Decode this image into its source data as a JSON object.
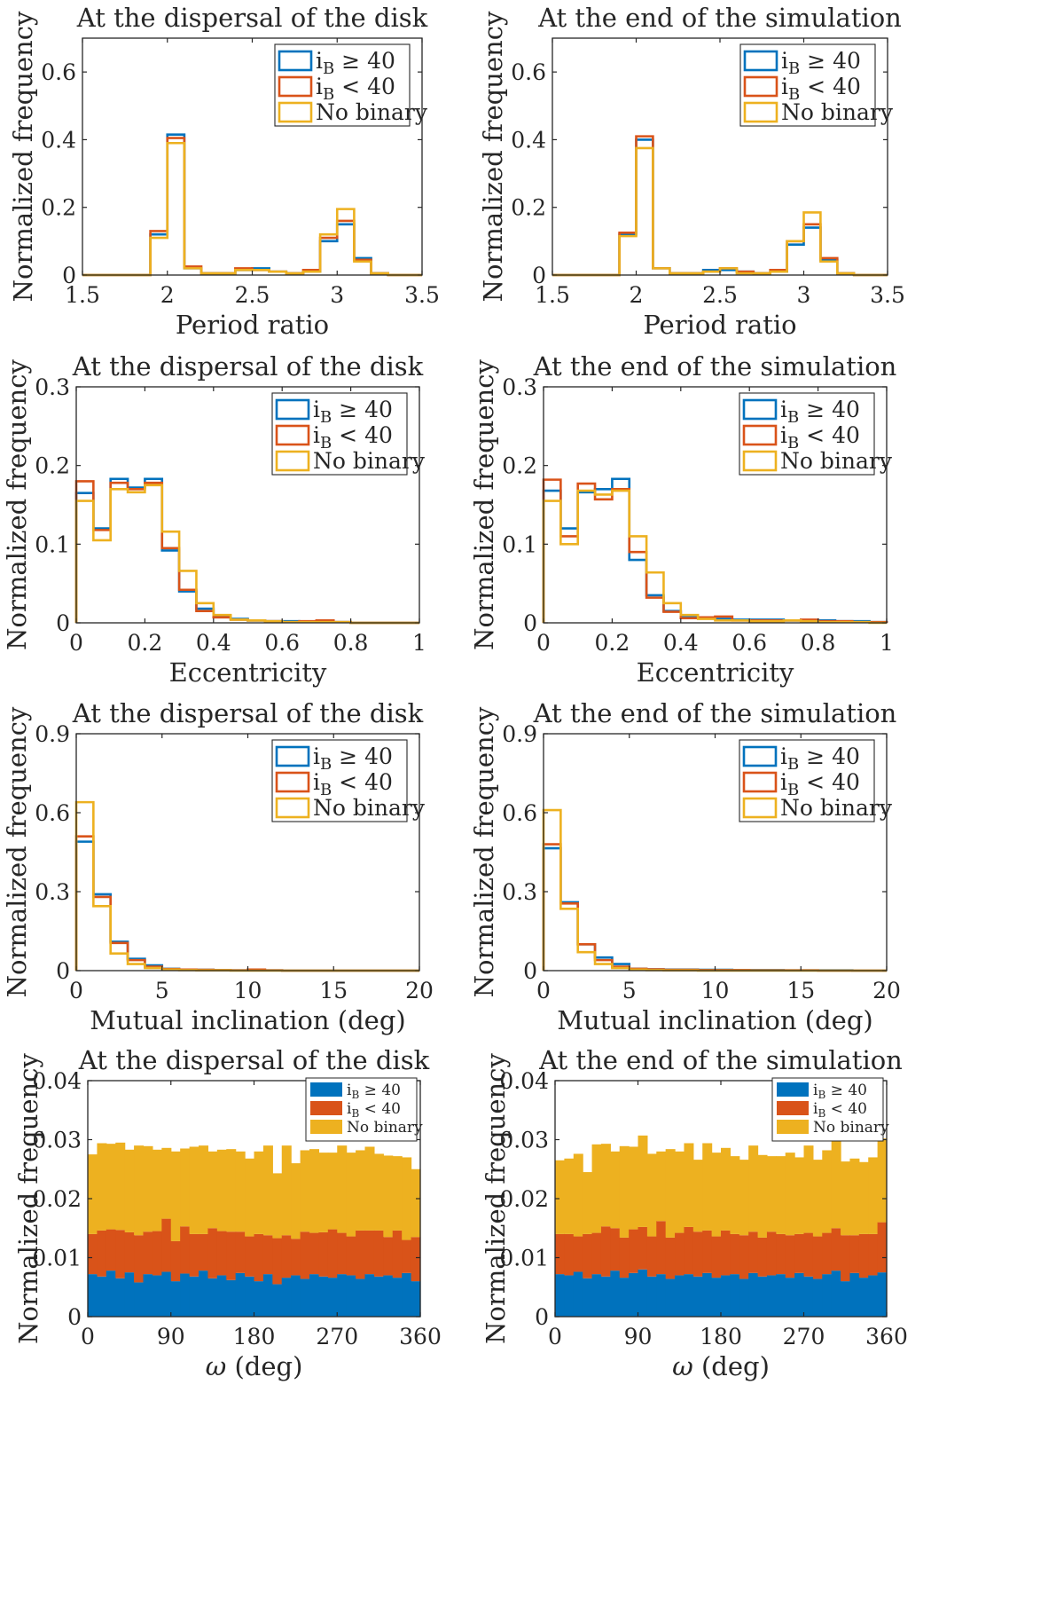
{
  "figure": {
    "colors": {
      "series1": "#0072BD",
      "series2": "#D95319",
      "series3": "#EDB120",
      "axis": "#262626"
    }
  },
  "chart_data": [
    {
      "type": "histogram",
      "title": "At the dispersal of the disk",
      "xlabel": "Period ratio",
      "ylabel": "Normalized frequency",
      "xlim": [
        1.5,
        3.5
      ],
      "ylim": [
        0,
        0.7
      ],
      "xticks": [
        "1.5",
        "2",
        "2.5",
        "3",
        "3.5"
      ],
      "yticks": [
        "0",
        "0.2",
        "0.4",
        "0.6"
      ],
      "bin_edges": [
        1.5,
        1.6,
        1.7,
        1.8,
        1.9,
        2.0,
        2.1,
        2.2,
        2.3,
        2.4,
        2.5,
        2.6,
        2.7,
        2.8,
        2.9,
        3.0,
        3.1,
        3.2,
        3.3,
        3.4,
        3.5
      ],
      "series": [
        {
          "name": "iB ≥ 40",
          "values": [
            0,
            0,
            0,
            0,
            0.12,
            0.415,
            0.02,
            0.005,
            0.005,
            0.015,
            0.02,
            0.01,
            0.005,
            0.01,
            0.1,
            0.15,
            0.05,
            0.005,
            0,
            0
          ]
        },
        {
          "name": "iB < 40",
          "values": [
            0,
            0,
            0,
            0,
            0.13,
            0.405,
            0.025,
            0.005,
            0.005,
            0.02,
            0.015,
            0.01,
            0.005,
            0.015,
            0.11,
            0.16,
            0.045,
            0.005,
            0,
            0
          ]
        },
        {
          "name": "No binary",
          "values": [
            0,
            0,
            0,
            0,
            0.11,
            0.39,
            0.02,
            0.005,
            0.005,
            0.015,
            0.015,
            0.01,
            0.005,
            0.01,
            0.12,
            0.195,
            0.04,
            0.005,
            0,
            0
          ]
        }
      ],
      "legend": {
        "entries": [
          "iB ≥ 40",
          "iB < 40",
          "No binary"
        ],
        "location": "top-right"
      }
    },
    {
      "type": "histogram",
      "title": "At the end of the simulation",
      "xlabel": "Period ratio",
      "ylabel": "Normalized frequency",
      "xlim": [
        1.5,
        3.5
      ],
      "ylim": [
        0,
        0.7
      ],
      "xticks": [
        "1.5",
        "2",
        "2.5",
        "3",
        "3.5"
      ],
      "yticks": [
        "0",
        "0.2",
        "0.4",
        "0.6"
      ],
      "bin_edges": [
        1.5,
        1.6,
        1.7,
        1.8,
        1.9,
        2.0,
        2.1,
        2.2,
        2.3,
        2.4,
        2.5,
        2.6,
        2.7,
        2.8,
        2.9,
        3.0,
        3.1,
        3.2,
        3.3,
        3.4,
        3.5
      ],
      "series": [
        {
          "name": "iB ≥ 40",
          "values": [
            0,
            0,
            0,
            0,
            0.12,
            0.4,
            0.02,
            0.005,
            0.005,
            0.015,
            0.015,
            0.01,
            0.005,
            0.01,
            0.09,
            0.14,
            0.045,
            0.005,
            0,
            0
          ]
        },
        {
          "name": "iB < 40",
          "values": [
            0,
            0,
            0,
            0,
            0.125,
            0.41,
            0.02,
            0.005,
            0.005,
            0.01,
            0.02,
            0.01,
            0.005,
            0.015,
            0.1,
            0.15,
            0.05,
            0.005,
            0,
            0
          ]
        },
        {
          "name": "No binary",
          "values": [
            0,
            0,
            0,
            0,
            0.115,
            0.375,
            0.02,
            0.005,
            0.005,
            0.01,
            0.02,
            0.005,
            0.005,
            0.01,
            0.1,
            0.185,
            0.04,
            0.005,
            0,
            0
          ]
        }
      ],
      "legend": {
        "entries": [
          "iB ≥ 40",
          "iB < 40",
          "No binary"
        ],
        "location": "top-right"
      }
    },
    {
      "type": "histogram",
      "title": "At the dispersal of the disk",
      "xlabel": "Eccentricity",
      "ylabel": "Normalized frequency",
      "xlim": [
        0,
        1
      ],
      "ylim": [
        0,
        0.3
      ],
      "xticks": [
        "0",
        "0.2",
        "0.4",
        "0.6",
        "0.8",
        "1"
      ],
      "yticks": [
        "0",
        "0.1",
        "0.2",
        "0.3"
      ],
      "bin_edges": [
        0,
        0.05,
        0.1,
        0.15,
        0.2,
        0.25,
        0.3,
        0.35,
        0.4,
        0.45,
        0.5,
        0.55,
        0.6,
        0.65,
        0.7,
        0.75,
        0.8,
        0.85,
        0.9,
        0.95,
        1.0
      ],
      "series": [
        {
          "name": "iB ≥ 40",
          "values": [
            0.165,
            0.12,
            0.183,
            0.172,
            0.183,
            0.092,
            0.04,
            0.018,
            0.008,
            0.005,
            0.003,
            0.002,
            0.002,
            0.001,
            0.001,
            0.001,
            0,
            0,
            0,
            0
          ]
        },
        {
          "name": "iB < 40",
          "values": [
            0.18,
            0.118,
            0.178,
            0.17,
            0.178,
            0.095,
            0.042,
            0.015,
            0.007,
            0.004,
            0.003,
            0.002,
            0.001,
            0.002,
            0.003,
            0.001,
            0,
            0,
            0,
            0
          ]
        },
        {
          "name": "No binary",
          "values": [
            0.155,
            0.105,
            0.17,
            0.166,
            0.175,
            0.116,
            0.066,
            0.025,
            0.01,
            0.004,
            0.003,
            0.002,
            0.001,
            0.001,
            0.001,
            0.001,
            0,
            0,
            0,
            0
          ]
        }
      ],
      "legend": {
        "entries": [
          "iB ≥ 40",
          "iB < 40",
          "No binary"
        ],
        "location": "top-right"
      }
    },
    {
      "type": "histogram",
      "title": "At the end of the simulation",
      "xlabel": "Eccentricity",
      "ylabel": "Normalized frequency",
      "xlim": [
        0,
        1
      ],
      "ylim": [
        0,
        0.3
      ],
      "xticks": [
        "0",
        "0.2",
        "0.4",
        "0.6",
        "0.8",
        "1"
      ],
      "yticks": [
        "0",
        "0.1",
        "0.2",
        "0.3"
      ],
      "bin_edges": [
        0,
        0.05,
        0.1,
        0.15,
        0.2,
        0.25,
        0.3,
        0.35,
        0.4,
        0.45,
        0.5,
        0.55,
        0.6,
        0.65,
        0.7,
        0.75,
        0.8,
        0.85,
        0.9,
        0.95,
        1.0
      ],
      "series": [
        {
          "name": "iB ≥ 40",
          "values": [
            0.168,
            0.12,
            0.166,
            0.17,
            0.183,
            0.08,
            0.035,
            0.015,
            0.007,
            0.006,
            0.005,
            0.004,
            0.004,
            0.004,
            0.003,
            0.003,
            0.003,
            0.002,
            0.002,
            0.001
          ]
        },
        {
          "name": "iB < 40",
          "values": [
            0.182,
            0.11,
            0.177,
            0.157,
            0.17,
            0.09,
            0.032,
            0.014,
            0.006,
            0.007,
            0.008,
            0.003,
            0.003,
            0.003,
            0.003,
            0.004,
            0.002,
            0.002,
            0.001,
            0.001
          ]
        },
        {
          "name": "No binary",
          "values": [
            0.155,
            0.1,
            0.168,
            0.163,
            0.168,
            0.11,
            0.064,
            0.025,
            0.01,
            0.005,
            0.003,
            0.003,
            0.002,
            0.002,
            0.003,
            0.002,
            0.001,
            0.001,
            0.001,
            0
          ]
        }
      ],
      "legend": {
        "entries": [
          "iB ≥ 40",
          "iB < 40",
          "No binary"
        ],
        "location": "top-right"
      }
    },
    {
      "type": "histogram",
      "title": "At the dispersal of the disk",
      "xlabel": "Mutual inclination (deg)",
      "ylabel": "Normalized frequency",
      "xlim": [
        0,
        20
      ],
      "ylim": [
        0,
        0.9
      ],
      "xticks": [
        "0",
        "5",
        "10",
        "15",
        "20"
      ],
      "yticks": [
        "0",
        "0.3",
        "0.6",
        "0.9"
      ],
      "bin_edges": [
        0,
        1,
        2,
        3,
        4,
        5,
        6,
        7,
        8,
        9,
        10,
        11,
        12,
        13,
        14,
        15,
        16,
        17,
        18,
        19,
        20
      ],
      "series": [
        {
          "name": "iB ≥ 40",
          "values": [
            0.49,
            0.29,
            0.11,
            0.045,
            0.02,
            0.007,
            0.004,
            0.003,
            0.002,
            0.001,
            0.003,
            0.001,
            0,
            0,
            0,
            0,
            0,
            0,
            0,
            0
          ]
        },
        {
          "name": "iB < 40",
          "values": [
            0.51,
            0.28,
            0.105,
            0.04,
            0.015,
            0.006,
            0.004,
            0.003,
            0.002,
            0.001,
            0.004,
            0.001,
            0,
            0,
            0,
            0,
            0,
            0,
            0,
            0
          ]
        },
        {
          "name": "No binary",
          "values": [
            0.64,
            0.245,
            0.065,
            0.025,
            0.01,
            0.004,
            0.002,
            0.001,
            0.001,
            0,
            0,
            0,
            0,
            0,
            0,
            0,
            0,
            0,
            0,
            0
          ]
        }
      ],
      "legend": {
        "entries": [
          "iB ≥ 40",
          "iB < 40",
          "No binary"
        ],
        "location": "top-right"
      }
    },
    {
      "type": "histogram",
      "title": "At the end of the simulation",
      "xlabel": "Mutual inclination (deg)",
      "ylabel": "Normalized frequency",
      "xlim": [
        0,
        20
      ],
      "ylim": [
        0,
        0.9
      ],
      "xticks": [
        "0",
        "5",
        "10",
        "15",
        "20"
      ],
      "yticks": [
        "0",
        "0.3",
        "0.6",
        "0.9"
      ],
      "bin_edges": [
        0,
        1,
        2,
        3,
        4,
        5,
        6,
        7,
        8,
        9,
        10,
        11,
        12,
        13,
        14,
        15,
        16,
        17,
        18,
        19,
        20
      ],
      "series": [
        {
          "name": "iB ≥ 40",
          "values": [
            0.465,
            0.26,
            0.1,
            0.05,
            0.025,
            0.007,
            0.005,
            0.004,
            0.004,
            0.003,
            0.003,
            0.002,
            0.002,
            0.002,
            0.001,
            0.001,
            0.001,
            0.001,
            0,
            0
          ]
        },
        {
          "name": "iB < 40",
          "values": [
            0.48,
            0.255,
            0.1,
            0.04,
            0.015,
            0.007,
            0.005,
            0.003,
            0.003,
            0.002,
            0.002,
            0.002,
            0.001,
            0.001,
            0.001,
            0.001,
            0,
            0,
            0,
            0
          ]
        },
        {
          "name": "No binary",
          "values": [
            0.61,
            0.235,
            0.07,
            0.025,
            0.01,
            0.004,
            0.002,
            0.001,
            0.001,
            0,
            0,
            0,
            0,
            0,
            0,
            0,
            0,
            0,
            0,
            0
          ]
        }
      ],
      "legend": {
        "entries": [
          "iB ≥ 40",
          "iB < 40",
          "No binary"
        ],
        "location": "top-right"
      }
    },
    {
      "type": "stacked-bar",
      "title": "At the dispersal of the disk",
      "xlabel": "ω (deg)",
      "ylabel": "Normalized frequency",
      "xlim": [
        0,
        360
      ],
      "ylim": [
        0,
        0.04
      ],
      "xticks": [
        "0",
        "90",
        "180",
        "270",
        "360"
      ],
      "yticks": [
        "0",
        "0.01",
        "0.02",
        "0.03",
        "0.04"
      ],
      "bin_width": 10,
      "series": [
        {
          "name": "iB ≥ 40",
          "values": [
            0.0072,
            0.0068,
            0.0078,
            0.0065,
            0.0075,
            0.0058,
            0.0072,
            0.007,
            0.0076,
            0.006,
            0.0073,
            0.0068,
            0.0078,
            0.0065,
            0.007,
            0.0062,
            0.0074,
            0.0068,
            0.006,
            0.0072,
            0.0055,
            0.0066,
            0.007,
            0.0064,
            0.0072,
            0.0068,
            0.0066,
            0.0072,
            0.007,
            0.0064,
            0.0072,
            0.0068,
            0.007,
            0.0066,
            0.0074,
            0.006
          ]
        },
        {
          "name": "iB < 40",
          "values": [
            0.0068,
            0.0078,
            0.007,
            0.0082,
            0.0068,
            0.008,
            0.0072,
            0.0075,
            0.009,
            0.0068,
            0.008,
            0.0072,
            0.0062,
            0.0085,
            0.0075,
            0.0082,
            0.007,
            0.0068,
            0.008,
            0.0066,
            0.0078,
            0.0072,
            0.0062,
            0.008,
            0.007,
            0.0075,
            0.0082,
            0.007,
            0.0066,
            0.0082,
            0.0074,
            0.0078,
            0.0065,
            0.008,
            0.0056,
            0.0075
          ]
        },
        {
          "name": "No binary",
          "values": [
            0.0135,
            0.0148,
            0.0145,
            0.0148,
            0.014,
            0.0152,
            0.0145,
            0.0138,
            0.012,
            0.0152,
            0.0132,
            0.0148,
            0.015,
            0.013,
            0.0138,
            0.014,
            0.0136,
            0.0132,
            0.014,
            0.0152,
            0.011,
            0.0152,
            0.0128,
            0.0138,
            0.0142,
            0.0135,
            0.013,
            0.0148,
            0.0142,
            0.0136,
            0.0142,
            0.013,
            0.0138,
            0.0126,
            0.014,
            0.0115
          ]
        }
      ],
      "legend": {
        "entries": [
          "iB ≥ 40",
          "iB < 40",
          "No binary"
        ],
        "location": "top-right"
      }
    },
    {
      "type": "stacked-bar",
      "title": "At the end of the simulation",
      "xlabel": "ω (deg)",
      "ylabel": "Normalized frequency",
      "xlim": [
        0,
        360
      ],
      "ylim": [
        0,
        0.04
      ],
      "xticks": [
        "0",
        "90",
        "180",
        "270",
        "360"
      ],
      "yticks": [
        "0",
        "0.01",
        "0.02",
        "0.03",
        "0.04"
      ],
      "bin_width": 10,
      "series": [
        {
          "name": "iB ≥ 40",
          "values": [
            0.0072,
            0.007,
            0.0076,
            0.0065,
            0.0072,
            0.0068,
            0.0078,
            0.0066,
            0.0074,
            0.008,
            0.0068,
            0.0072,
            0.0064,
            0.007,
            0.0072,
            0.0068,
            0.0074,
            0.0066,
            0.007,
            0.0072,
            0.0064,
            0.0074,
            0.0068,
            0.007,
            0.0072,
            0.0066,
            0.0074,
            0.0068,
            0.0064,
            0.0072,
            0.0078,
            0.006,
            0.0074,
            0.0066,
            0.007,
            0.0075
          ]
        },
        {
          "name": "iB < 40",
          "values": [
            0.0068,
            0.007,
            0.006,
            0.0075,
            0.007,
            0.0085,
            0.0072,
            0.0068,
            0.0074,
            0.0072,
            0.0068,
            0.009,
            0.007,
            0.0072,
            0.008,
            0.0076,
            0.0072,
            0.007,
            0.0076,
            0.0068,
            0.0074,
            0.007,
            0.0066,
            0.0074,
            0.0068,
            0.0072,
            0.0066,
            0.0074,
            0.0072,
            0.007,
            0.0072,
            0.0078,
            0.0064,
            0.0074,
            0.007,
            0.0085
          ]
        },
        {
          "name": "No binary",
          "values": [
            0.0125,
            0.0128,
            0.014,
            0.0105,
            0.015,
            0.014,
            0.013,
            0.0155,
            0.014,
            0.0155,
            0.014,
            0.0118,
            0.015,
            0.0138,
            0.0142,
            0.0122,
            0.0148,
            0.0142,
            0.014,
            0.0132,
            0.0128,
            0.0146,
            0.014,
            0.0128,
            0.0132,
            0.014,
            0.013,
            0.0148,
            0.013,
            0.014,
            0.015,
            0.0125,
            0.013,
            0.0122,
            0.013,
            0.0142
          ]
        }
      ],
      "legend": {
        "entries": [
          "iB ≥ 40",
          "iB < 40",
          "No binary"
        ],
        "location": "top-right"
      }
    }
  ]
}
